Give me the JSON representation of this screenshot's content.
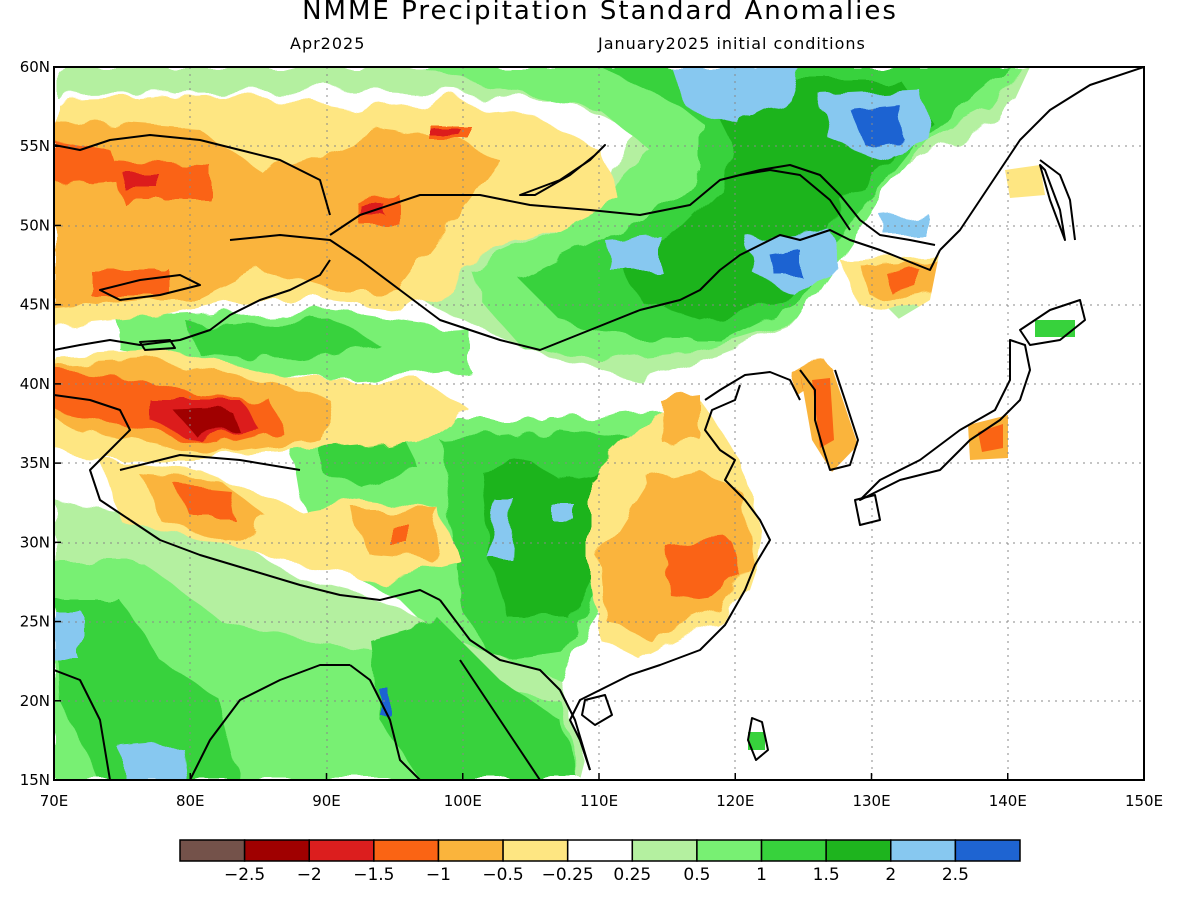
{
  "header": {
    "title": "NMME Precipitation Standard Anomalies",
    "month": "Apr2025",
    "initial_conditions": "January2025 initial conditions"
  },
  "map": {
    "lon_ticks": [
      "70E",
      "80E",
      "90E",
      "100E",
      "110E",
      "120E",
      "130E",
      "140E",
      "150E"
    ],
    "lat_ticks": [
      "60N",
      "55N",
      "50N",
      "45N",
      "40N",
      "35N",
      "30N",
      "25N",
      "20N",
      "15N"
    ],
    "lon_range": [
      70,
      150
    ],
    "lat_range": [
      15,
      60
    ],
    "gridlines": true,
    "coastlines": true,
    "borders": true
  },
  "colorbar": {
    "colors": [
      "#74524a",
      "#a00000",
      "#dc1e1e",
      "#fa6414",
      "#fab43c",
      "#fee682",
      "#ffffff",
      "#b4f0a0",
      "#78f073",
      "#37d23c",
      "#1eb41e",
      "#87c8f0",
      "#1e64d2"
    ],
    "labels": [
      "−2.5",
      "−2",
      "−1.5",
      "−1",
      "−0.5",
      "−0.25",
      "0.25",
      "0.5",
      "1",
      "1.5",
      "2",
      "2.5"
    ]
  },
  "features": [
    {
      "name": "dry-west-siberia",
      "class": 1,
      "level": 4,
      "region": "50-57N 70-95E"
    },
    {
      "name": "dry-xinjiang",
      "class": 3,
      "level": 5,
      "region": "37-40N 78-85E"
    },
    {
      "name": "dry-southeast-china",
      "class": 2,
      "level": 5,
      "region": "25-33N 113-121E"
    },
    {
      "name": "wet-mongolia-manchuria",
      "class": 11,
      "level": 9,
      "region": "45-58N 110-135E"
    },
    {
      "name": "wet-tibet-yunnan",
      "class": 10,
      "level": 9,
      "region": "20-36N 99-110E"
    },
    {
      "name": "wet-india",
      "class": 11,
      "level": 8,
      "region": "15-28N 70-85E"
    }
  ]
}
